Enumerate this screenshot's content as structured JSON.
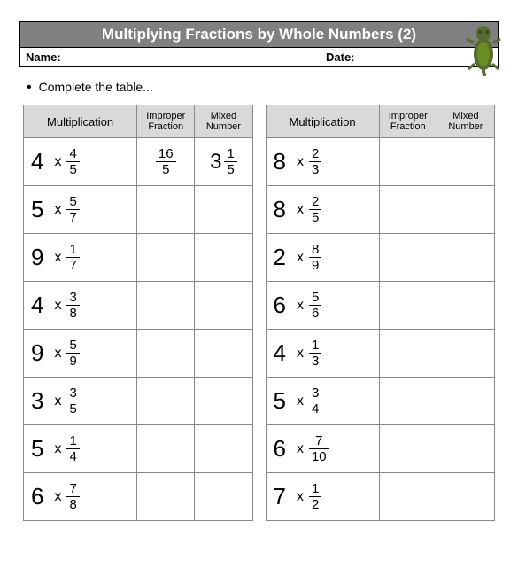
{
  "title": "Multiplying Fractions by Whole Numbers (2)",
  "name_label": "Name:",
  "date_label": "Date:",
  "instruction": "Complete the table...",
  "headers": {
    "multiplication": "Multiplication",
    "improper": "Improper Fraction",
    "mixed": "Mixed Number"
  },
  "colors": {
    "title_bg": "#808080",
    "title_fg": "#ffffff",
    "header_bg": "#d9d9d9",
    "border": "#888888",
    "lizard_body": "#556b2f",
    "lizard_dark": "#3b4a20"
  },
  "left": [
    {
      "whole": "4",
      "num": "4",
      "den": "5",
      "imp_num": "16",
      "imp_den": "5",
      "mix_whole": "3",
      "mix_num": "1",
      "mix_den": "5"
    },
    {
      "whole": "5",
      "num": "5",
      "den": "7"
    },
    {
      "whole": "9",
      "num": "1",
      "den": "7"
    },
    {
      "whole": "4",
      "num": "3",
      "den": "8"
    },
    {
      "whole": "9",
      "num": "5",
      "den": "9"
    },
    {
      "whole": "3",
      "num": "3",
      "den": "5"
    },
    {
      "whole": "5",
      "num": "1",
      "den": "4"
    },
    {
      "whole": "6",
      "num": "7",
      "den": "8"
    }
  ],
  "right": [
    {
      "whole": "8",
      "num": "2",
      "den": "3"
    },
    {
      "whole": "8",
      "num": "2",
      "den": "5"
    },
    {
      "whole": "2",
      "num": "8",
      "den": "9"
    },
    {
      "whole": "6",
      "num": "5",
      "den": "6"
    },
    {
      "whole": "4",
      "num": "1",
      "den": "3"
    },
    {
      "whole": "5",
      "num": "3",
      "den": "4"
    },
    {
      "whole": "6",
      "num": "7",
      "den": "10"
    },
    {
      "whole": "7",
      "num": "1",
      "den": "2"
    }
  ]
}
